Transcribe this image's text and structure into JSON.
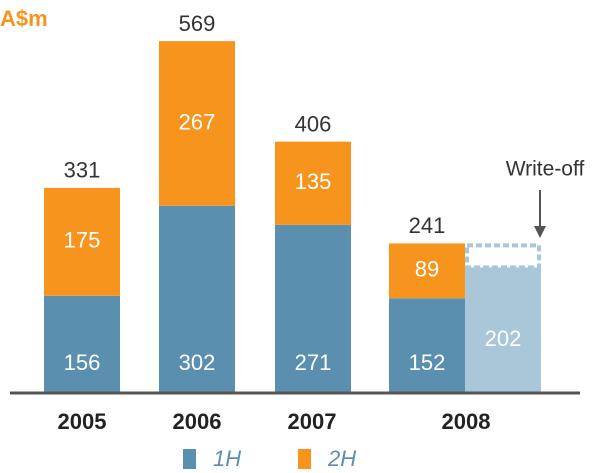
{
  "chart_data": {
    "type": "bar",
    "stacked": true,
    "unit": "A$m",
    "categories": [
      "2005",
      "2006",
      "2007",
      "2008"
    ],
    "series": [
      {
        "name": "1H",
        "color": "#5b8fb0",
        "values": [
          156,
          302,
          271,
          152
        ]
      },
      {
        "name": "2H",
        "color": "#f7941d",
        "values": [
          175,
          267,
          135,
          89
        ]
      }
    ],
    "totals": [
      331,
      569,
      406,
      241
    ],
    "write_off": {
      "label": "Write-off",
      "value": 202,
      "color": "#a9c7d8"
    },
    "ylim": [
      0,
      600
    ]
  }
}
